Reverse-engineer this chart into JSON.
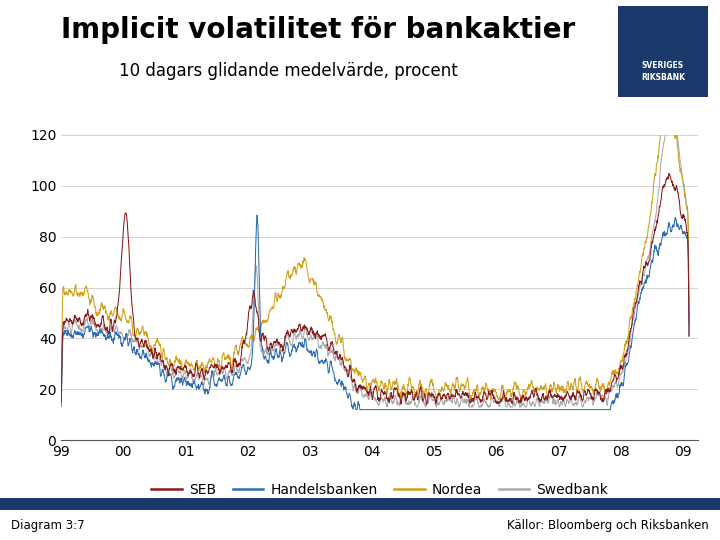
{
  "title": "Implicit volatilitet för bankaktier",
  "subtitle": "10 dagars glidande medelvärde, procent",
  "diagram_label": "Diagram 3:7",
  "source_label": "Källor: Bloomberg och Riksbanken",
  "colors": {
    "SEB": "#8B1A1A",
    "Handelsbanken": "#2E6DB4",
    "Nordea": "#D4A017",
    "Swedbank": "#AAAAAA"
  },
  "ylim": [
    0,
    120
  ],
  "yticks": [
    0,
    20,
    40,
    60,
    80,
    100,
    120
  ],
  "xtick_labels": [
    "99",
    "00",
    "01",
    "02",
    "03",
    "04",
    "05",
    "06",
    "07",
    "08",
    "09"
  ],
  "background_color": "#FFFFFF",
  "grid_color": "#CCCCCC",
  "footer_bar_color": "#1B3A6B",
  "title_fontsize": 20,
  "subtitle_fontsize": 12,
  "axis_fontsize": 10,
  "legend_fontsize": 10
}
